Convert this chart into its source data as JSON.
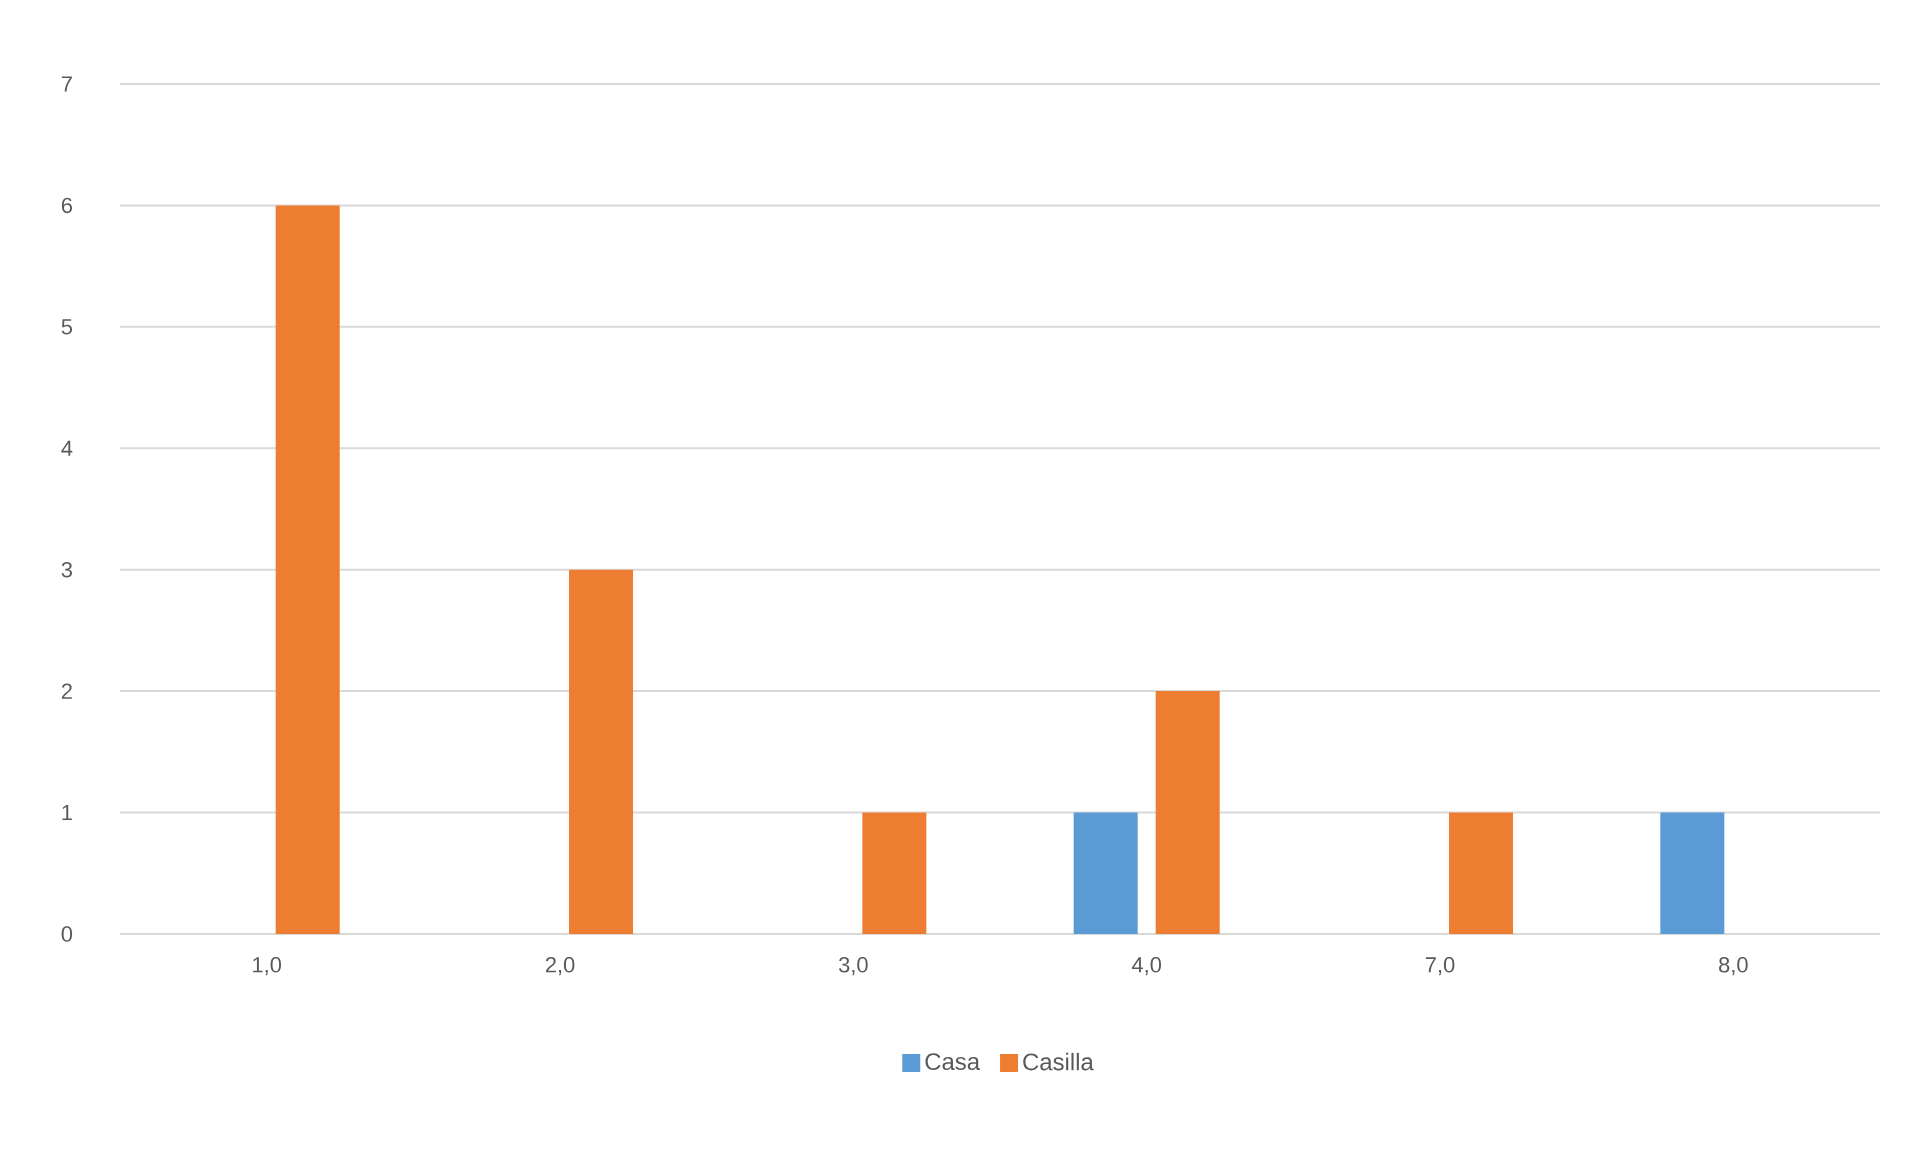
{
  "chart_data": {
    "type": "bar",
    "categories": [
      "1,0",
      "2,0",
      "3,0",
      "4,0",
      "7,0",
      "8,0"
    ],
    "series": [
      {
        "name": "Casa",
        "color": "#5b9bd5",
        "values": [
          0,
          0,
          0,
          1,
          0,
          1
        ]
      },
      {
        "name": "Casilla",
        "color": "#ed7d31",
        "values": [
          6,
          3,
          1,
          2,
          1,
          0
        ]
      }
    ],
    "ylim": [
      0,
      7
    ],
    "yticks": [
      0,
      1,
      2,
      3,
      4,
      5,
      6,
      7
    ],
    "grid": "y",
    "legend": "bottom"
  }
}
